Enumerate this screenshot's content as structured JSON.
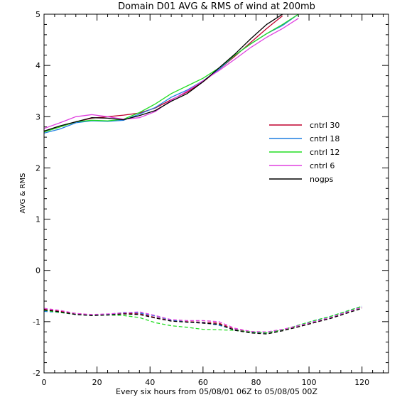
{
  "chart_data": {
    "type": "line",
    "title": "Domain D01 AVG & RMS of wind at 200mb",
    "xlabel": "Every six hours from 05/08/01 06Z to 05/08/05 00Z",
    "ylabel": "AVG & RMS",
    "xlim": [
      0,
      130
    ],
    "ylim": [
      -2,
      5
    ],
    "xticks": [
      0,
      20,
      40,
      60,
      80,
      100,
      120
    ],
    "yticks": [
      -2,
      -1,
      0,
      1,
      2,
      3,
      4,
      5
    ],
    "grid": false,
    "legend_position": "center-right",
    "series": [
      {
        "name": "cntrl 30",
        "color": "#c0002e",
        "avg": {
          "x": [
            0,
            6,
            12,
            18,
            24,
            30,
            36,
            42,
            48,
            54,
            60,
            66,
            72,
            78,
            84,
            90
          ],
          "y": [
            2.72,
            2.8,
            2.9,
            2.97,
            3.0,
            3.03,
            3.07,
            3.17,
            3.33,
            3.48,
            3.68,
            3.92,
            4.18,
            4.45,
            4.72,
            4.97
          ]
        },
        "rms": {
          "x": [
            0,
            6,
            12,
            18,
            24,
            30,
            36,
            42,
            48,
            54,
            60,
            66,
            72,
            78,
            84,
            90,
            96,
            102,
            108,
            114,
            120
          ],
          "y": [
            -0.76,
            -0.8,
            -0.84,
            -0.87,
            -0.86,
            -0.84,
            -0.84,
            -0.92,
            -0.98,
            -1.0,
            -1.01,
            -1.03,
            -1.15,
            -1.2,
            -1.22,
            -1.17,
            -1.1,
            -1.02,
            -0.93,
            -0.82,
            -0.72
          ]
        }
      },
      {
        "name": "cntrl 18",
        "color": "#1e7fe0",
        "avg": {
          "x": [
            0,
            6,
            12,
            18,
            24,
            30,
            36,
            42,
            48,
            54,
            60,
            66,
            72,
            78,
            84,
            90,
            96
          ],
          "y": [
            2.68,
            2.76,
            2.88,
            2.92,
            2.91,
            2.93,
            3.05,
            3.18,
            3.38,
            3.52,
            3.7,
            3.92,
            4.2,
            4.42,
            4.62,
            4.78,
            5.0
          ]
        },
        "rms": {
          "x": [
            0,
            6,
            12,
            18,
            24,
            30,
            36,
            42,
            48,
            54,
            60,
            66,
            72,
            78,
            84,
            90,
            96,
            102,
            108,
            114,
            120
          ],
          "y": [
            -0.8,
            -0.82,
            -0.86,
            -0.88,
            -0.86,
            -0.82,
            -0.83,
            -0.89,
            -0.97,
            -1.01,
            -1.02,
            -1.07,
            -1.16,
            -1.21,
            -1.22,
            -1.16,
            -1.07,
            -0.98,
            -0.9,
            -0.8,
            -0.7
          ]
        }
      },
      {
        "name": "cntrl 12",
        "color": "#22dd22",
        "avg": {
          "x": [
            0,
            6,
            12,
            18,
            24,
            30,
            36,
            42,
            48,
            54,
            60,
            66,
            72,
            78,
            84,
            90,
            96
          ],
          "y": [
            2.7,
            2.8,
            2.9,
            2.93,
            2.92,
            2.95,
            3.08,
            3.25,
            3.45,
            3.6,
            3.75,
            3.95,
            4.2,
            4.42,
            4.62,
            4.8,
            5.0
          ]
        },
        "rms": {
          "x": [
            0,
            6,
            12,
            18,
            24,
            30,
            36,
            42,
            48,
            54,
            60,
            66,
            72,
            78,
            84,
            90,
            96,
            102,
            108,
            114,
            120
          ],
          "y": [
            -0.78,
            -0.82,
            -0.86,
            -0.88,
            -0.87,
            -0.88,
            -0.92,
            -1.02,
            -1.08,
            -1.11,
            -1.15,
            -1.16,
            -1.17,
            -1.2,
            -1.22,
            -1.16,
            -1.07,
            -0.98,
            -0.9,
            -0.8,
            -0.7
          ]
        }
      },
      {
        "name": "cntrl 6",
        "color": "#e040e0",
        "avg": {
          "x": [
            0,
            6,
            12,
            18,
            24,
            30,
            36,
            42,
            48,
            54,
            60,
            66,
            72,
            78,
            84,
            90,
            96
          ],
          "y": [
            2.77,
            2.88,
            3.0,
            3.04,
            3.0,
            2.95,
            2.98,
            3.1,
            3.32,
            3.5,
            3.7,
            3.9,
            4.12,
            4.35,
            4.55,
            4.72,
            4.92
          ]
        },
        "rms": {
          "x": [
            0,
            6,
            12,
            18,
            24,
            30,
            36,
            42,
            48,
            54,
            60,
            66,
            72,
            78,
            84,
            90,
            96,
            102,
            108,
            114,
            120
          ],
          "y": [
            -0.74,
            -0.78,
            -0.84,
            -0.86,
            -0.85,
            -0.83,
            -0.81,
            -0.88,
            -0.96,
            -0.98,
            -0.98,
            -1.0,
            -1.13,
            -1.19,
            -1.2,
            -1.15,
            -1.08,
            -1.0,
            -0.92,
            -0.82,
            -0.72
          ]
        }
      },
      {
        "name": "nogps",
        "color": "#000000",
        "avg": {
          "x": [
            0,
            6,
            12,
            18,
            24,
            30,
            36,
            42,
            48,
            54,
            60,
            66,
            72,
            78,
            84,
            90
          ],
          "y": [
            2.72,
            2.82,
            2.9,
            2.98,
            2.97,
            2.94,
            3.02,
            3.12,
            3.3,
            3.45,
            3.68,
            3.95,
            4.22,
            4.52,
            4.8,
            5.0
          ]
        },
        "rms": {
          "x": [
            0,
            6,
            12,
            18,
            24,
            30,
            36,
            42,
            48,
            54,
            60,
            66,
            72,
            78,
            84,
            90,
            96,
            102,
            108,
            114,
            120
          ],
          "y": [
            -0.77,
            -0.81,
            -0.86,
            -0.88,
            -0.87,
            -0.85,
            -0.86,
            -0.93,
            -0.99,
            -1.01,
            -1.03,
            -1.05,
            -1.17,
            -1.22,
            -1.24,
            -1.18,
            -1.1,
            -1.02,
            -0.94,
            -0.84,
            -0.74
          ]
        }
      }
    ]
  }
}
